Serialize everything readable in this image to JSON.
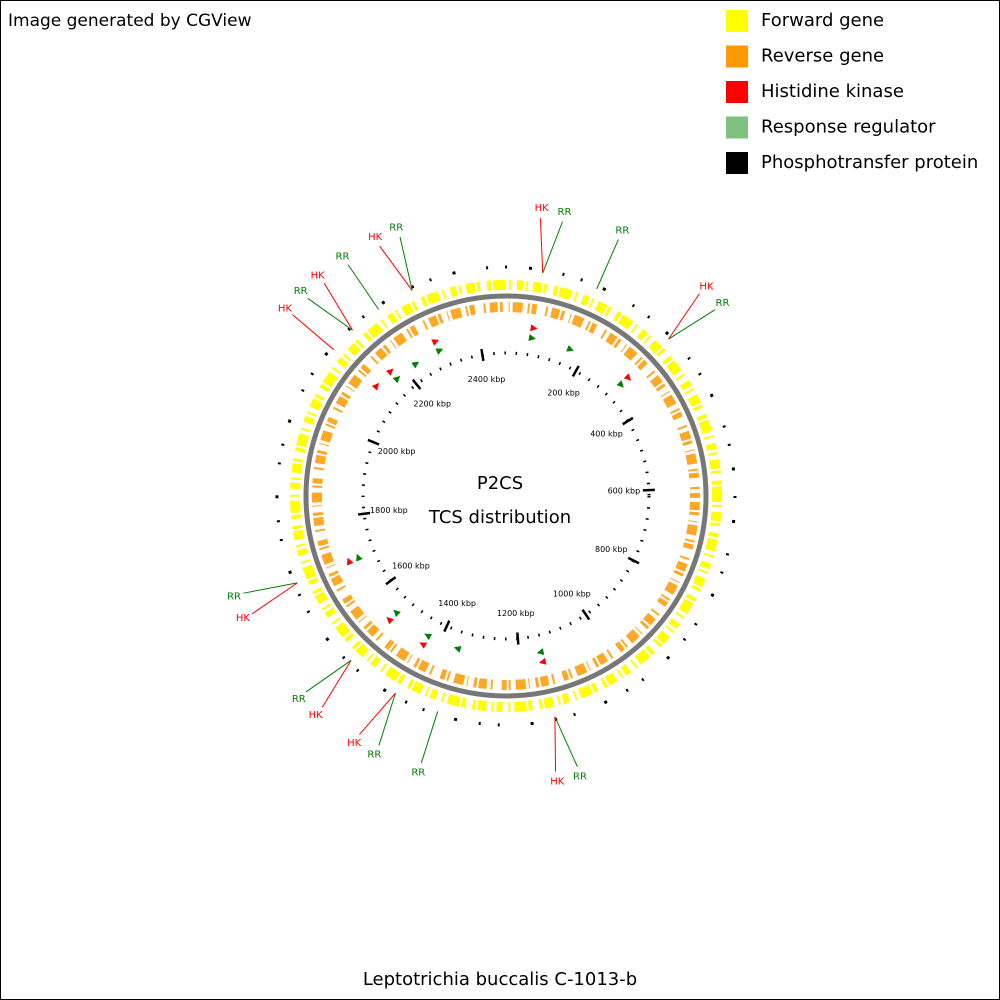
{
  "header": {
    "credit": "Image generated by CGView"
  },
  "legend": [
    {
      "label": "Forward gene",
      "color": "#ffff00"
    },
    {
      "label": "Reverse gene",
      "color": "#ff9900"
    },
    {
      "label": "Histidine kinase",
      "color": "#ff0000"
    },
    {
      "label": "Response regulator",
      "color": "#80c080"
    },
    {
      "label": "Phosphotransfer protein",
      "color": "#000000"
    }
  ],
  "center": {
    "title": "P2CS",
    "subtitle": "TCS distribution"
  },
  "genome": {
    "length_kbp": 2465,
    "ticks": [
      {
        "value": 200,
        "label": "200 kbp"
      },
      {
        "value": 400,
        "label": "400 kbp"
      },
      {
        "value": 600,
        "label": "600 kbp"
      },
      {
        "value": 800,
        "label": "800 kbp"
      },
      {
        "value": 1000,
        "label": "1000 kbp"
      },
      {
        "value": 1200,
        "label": "1200 kbp"
      },
      {
        "value": 1400,
        "label": "1400 kbp"
      },
      {
        "value": 1600,
        "label": "1600 kbp"
      },
      {
        "value": 1800,
        "label": "1800 kbp"
      },
      {
        "value": 2000,
        "label": "2000 kbp"
      },
      {
        "value": 2200,
        "label": "2200 kbp"
      },
      {
        "value": 2400,
        "label": "2400 kbp"
      }
    ]
  },
  "features": [
    {
      "label": "HK",
      "position_kbp": 64,
      "color": "#ff0000"
    },
    {
      "label": "RR",
      "position_kbp": 64,
      "color": "#008000"
    },
    {
      "label": "RR",
      "position_kbp": 162,
      "color": "#008000"
    },
    {
      "label": "HK",
      "position_kbp": 315,
      "color": "#ff0000"
    },
    {
      "label": "RR",
      "position_kbp": 315,
      "color": "#008000"
    },
    {
      "label": "RR",
      "position_kbp": 1147,
      "color": "#008000"
    },
    {
      "label": "HK",
      "position_kbp": 1147,
      "color": "#ff0000"
    },
    {
      "label": "RR",
      "position_kbp": 1353,
      "color": "#008000"
    },
    {
      "label": "RR",
      "position_kbp": 1433,
      "color": "#008000"
    },
    {
      "label": "HK",
      "position_kbp": 1433,
      "color": "#ff0000"
    },
    {
      "label": "HK",
      "position_kbp": 1529,
      "color": "#ff0000"
    },
    {
      "label": "RR",
      "position_kbp": 1529,
      "color": "#008000"
    },
    {
      "label": "HK",
      "position_kbp": 1694,
      "color": "#ff0000"
    },
    {
      "label": "RR",
      "position_kbp": 1694,
      "color": "#008000"
    },
    {
      "label": "HK",
      "position_kbp": 2125,
      "color": "#ff0000"
    },
    {
      "label": "RR",
      "position_kbp": 2172,
      "color": "#008000"
    },
    {
      "label": "HK",
      "position_kbp": 2172,
      "color": "#ff0000"
    },
    {
      "label": "RR",
      "position_kbp": 2230,
      "color": "#008000"
    },
    {
      "label": "HK",
      "position_kbp": 2297,
      "color": "#ff0000"
    },
    {
      "label": "RR",
      "position_kbp": 2297,
      "color": "#008000"
    }
  ],
  "footer": {
    "organism": "Leptotrichia buccalis C-1013-b"
  }
}
